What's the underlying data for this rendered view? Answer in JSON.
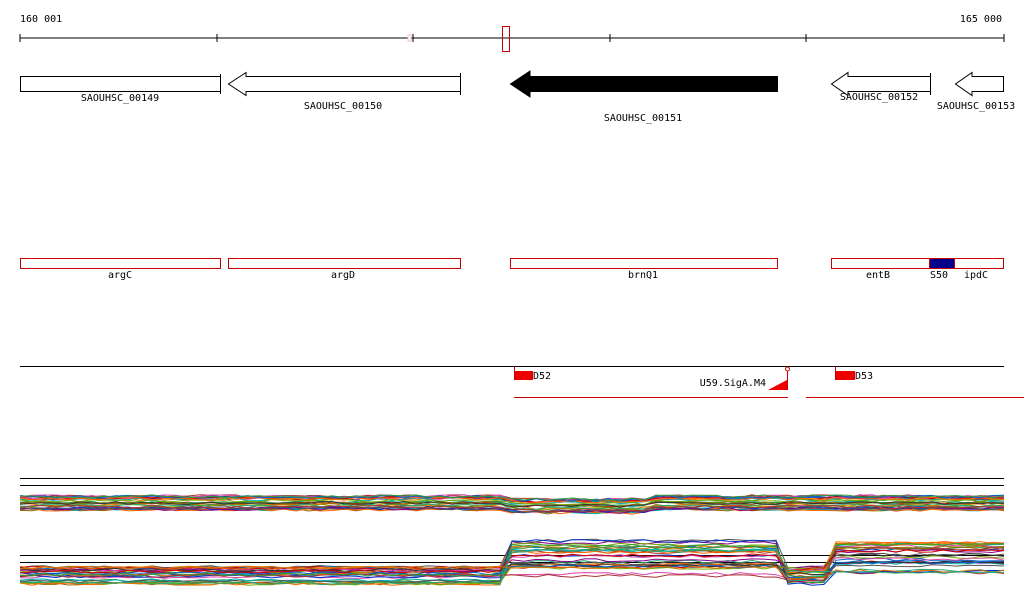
{
  "axis": {
    "start_label": "160 001",
    "end_label": "165 000"
  },
  "genes": [
    {
      "label": "SAOUHSC_00149"
    },
    {
      "label": "SAOUHSC_00150"
    },
    {
      "label": "SAOUHSC_00151"
    },
    {
      "label": "SAOUHSC_00152"
    },
    {
      "label": "SAOUHSC_00153"
    }
  ],
  "features": [
    {
      "label": "argC"
    },
    {
      "label": "argD"
    },
    {
      "label": "brnQ1"
    },
    {
      "label": "entB"
    },
    {
      "label": "S50"
    },
    {
      "label": "ipdC"
    }
  ],
  "sites": [
    {
      "label": "D52"
    },
    {
      "label": "U59.SigA.M4"
    },
    {
      "label": "D53"
    }
  ]
}
